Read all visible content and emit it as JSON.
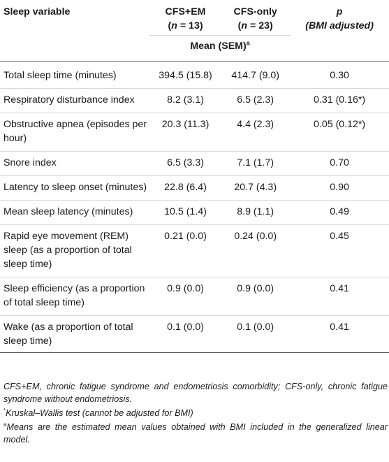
{
  "header": {
    "col_variable": "Sleep variable",
    "group1_name": "CFS+EM",
    "group1_n_prefix": "(",
    "group1_n_label": "n",
    "group1_n_rest": " = 13)",
    "group2_name": "CFS-only",
    "group2_n_prefix": "(",
    "group2_n_label": "n",
    "group2_n_rest": " = 23)",
    "p_label": "p",
    "p_sub": "(BMI adjusted)",
    "mean_label": "Mean (SEM)",
    "mean_sup": "a"
  },
  "rows": [
    {
      "variable": "Total sleep time (minutes)",
      "cfs_em": "394.5 (15.8)",
      "cfs_only": "414.7 (9.0)",
      "p": "0.30"
    },
    {
      "variable": "Respiratory disturbance index",
      "cfs_em": "8.2 (3.1)",
      "cfs_only": "6.5 (2.3)",
      "p": "0.31 (0.16*)"
    },
    {
      "variable": "Obstructive apnea (episodes per hour)",
      "cfs_em": "20.3 (11.3)",
      "cfs_only": "4.4 (2.3)",
      "p": "0.05 (0.12*)"
    },
    {
      "variable": "Snore index",
      "cfs_em": "6.5 (3.3)",
      "cfs_only": "7.1 (1.7)",
      "p": "0.70"
    },
    {
      "variable": "Latency to sleep onset (minutes)",
      "cfs_em": "22.8 (6.4)",
      "cfs_only": "20.7 (4.3)",
      "p": "0.90"
    },
    {
      "variable": "Mean sleep latency (minutes)",
      "cfs_em": "10.5 (1.4)",
      "cfs_only": "8.9 (1.1)",
      "p": "0.49"
    },
    {
      "variable": "Rapid eye movement (REM) sleep (as a proportion of total sleep time)",
      "cfs_em": "0.21 (0.0)",
      "cfs_only": "0.24 (0.0)",
      "p": "0.45"
    },
    {
      "variable": "Sleep efficiency (as a proportion of total sleep time)",
      "cfs_em": "0.9 (0.0)",
      "cfs_only": "0.9 (0.0)",
      "p": "0.41"
    },
    {
      "variable": "Wake (as a proportion of total sleep time)",
      "cfs_em": "0.1 (0.0)",
      "cfs_only": "0.1 (0.0)",
      "p": "0.41"
    }
  ],
  "footnotes": {
    "abbrev": "CFS+EM, chronic fatigue syndrome and endometriosis comorbidity; CFS-only, chronic fatigue syndrome without endometriosis.",
    "star_mark": "*",
    "star_text": "Kruskal–Wallis test (cannot be adjusted for BMI)",
    "a_mark": "a",
    "a_text": "Means are the estimated mean values obtained with BMI included in the generalized linear model."
  }
}
